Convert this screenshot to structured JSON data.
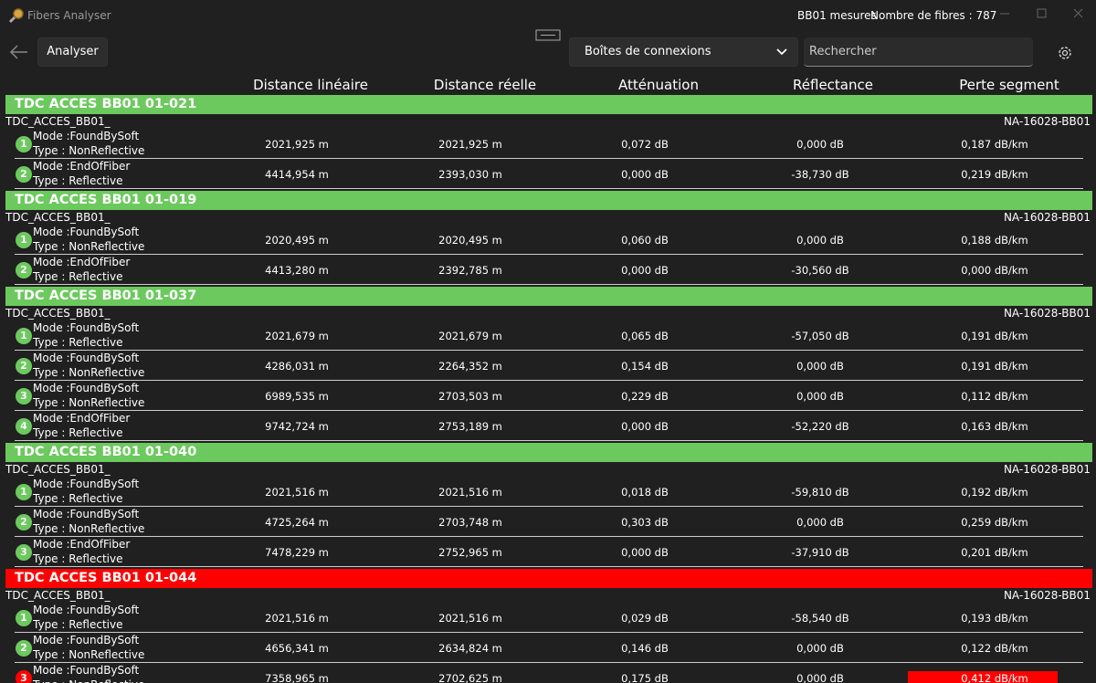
{
  "window": {
    "title": "Fibers Analyser",
    "measures": "BB01 mesures",
    "fiber_count": "Nombre de fibres : 787"
  },
  "toolbar": {
    "analyse_button": "Analyser",
    "dropdown": "Boîtes de connexions",
    "search_placeholder": "Rechercher"
  },
  "columns": [
    "Distance linéaire",
    "Distance réelle",
    "Atténuation",
    "Réflectance",
    "Perte segment"
  ],
  "groups": [
    {
      "title": "TDC ACCES BB01 01-021",
      "color": "#6cc95e",
      "left": "TDC_ACCES_BB01_",
      "right": "NA-16028-BB01",
      "events": [
        {
          "number": 1,
          "mode": "Mode :FoundBySoft",
          "type": "Type : NonReflective",
          "alert": false,
          "cells": [
            "2021,925 m",
            "2021,925 m",
            "0,072 dB",
            "0,000 dB",
            "0,187 dB/km"
          ]
        },
        {
          "number": 2,
          "mode": "Mode :EndOfFiber",
          "type": "Type : Reflective",
          "alert": false,
          "cells": [
            "4414,954 m",
            "2393,030 m",
            "0,000 dB",
            "-38,730 dB",
            "0,219 dB/km"
          ]
        }
      ]
    },
    {
      "title": "TDC ACCES BB01 01-019",
      "color": "#6cc95e",
      "left": "TDC_ACCES_BB01_",
      "right": "NA-16028-BB01",
      "events": [
        {
          "number": 1,
          "mode": "Mode :FoundBySoft",
          "type": "Type : NonReflective",
          "alert": false,
          "cells": [
            "2020,495 m",
            "2020,495 m",
            "0,060 dB",
            "0,000 dB",
            "0,188 dB/km"
          ]
        },
        {
          "number": 2,
          "mode": "Mode :EndOfFiber",
          "type": "Type : Reflective",
          "alert": false,
          "cells": [
            "4413,280 m",
            "2392,785 m",
            "0,000 dB",
            "-30,560 dB",
            "0,000 dB/km"
          ]
        }
      ]
    },
    {
      "title": "TDC ACCES BB01 01-037",
      "color": "#6cc95e",
      "left": "TDC_ACCES_BB01_",
      "right": "NA-16028-BB01",
      "events": [
        {
          "number": 1,
          "mode": "Mode :FoundBySoft",
          "type": "Type : Reflective",
          "alert": false,
          "cells": [
            "2021,679 m",
            "2021,679 m",
            "0,065 dB",
            "-57,050 dB",
            "0,191 dB/km"
          ]
        },
        {
          "number": 2,
          "mode": "Mode :FoundBySoft",
          "type": "Type : NonReflective",
          "alert": false,
          "cells": [
            "4286,031 m",
            "2264,352 m",
            "0,154 dB",
            "0,000 dB",
            "0,191 dB/km"
          ]
        },
        {
          "number": 3,
          "mode": "Mode :FoundBySoft",
          "type": "Type : NonReflective",
          "alert": false,
          "cells": [
            "6989,535 m",
            "2703,503 m",
            "0,229 dB",
            "0,000 dB",
            "0,112 dB/km"
          ]
        },
        {
          "number": 4,
          "mode": "Mode :EndOfFiber",
          "type": "Type : Reflective",
          "alert": false,
          "cells": [
            "9742,724 m",
            "2753,189 m",
            "0,000 dB",
            "-52,220 dB",
            "0,163 dB/km"
          ]
        }
      ]
    },
    {
      "title": "TDC ACCES BB01 01-040",
      "color": "#6cc95e",
      "left": "TDC_ACCES_BB01_",
      "right": "NA-16028-BB01",
      "events": [
        {
          "number": 1,
          "mode": "Mode :FoundBySoft",
          "type": "Type : Reflective",
          "alert": false,
          "cells": [
            "2021,516 m",
            "2021,516 m",
            "0,018 dB",
            "-59,810 dB",
            "0,192 dB/km"
          ]
        },
        {
          "number": 2,
          "mode": "Mode :FoundBySoft",
          "type": "Type : NonReflective",
          "alert": false,
          "cells": [
            "4725,264 m",
            "2703,748 m",
            "0,303 dB",
            "0,000 dB",
            "0,259 dB/km"
          ]
        },
        {
          "number": 3,
          "mode": "Mode :EndOfFiber",
          "type": "Type : Reflective",
          "alert": false,
          "cells": [
            "7478,229 m",
            "2752,965 m",
            "0,000 dB",
            "-37,910 dB",
            "0,201 dB/km"
          ]
        }
      ]
    },
    {
      "title": "TDC ACCES BB01 01-044",
      "color": "#ff0000",
      "left": "TDC_ACCES_BB01_",
      "right": "NA-16028-BB01",
      "events": [
        {
          "number": 1,
          "mode": "Mode :FoundBySoft",
          "type": "Type : Reflective",
          "alert": false,
          "cells": [
            "2021,516 m",
            "2021,516 m",
            "0,029 dB",
            "-58,540 dB",
            "0,193 dB/km"
          ]
        },
        {
          "number": 2,
          "mode": "Mode :FoundBySoft",
          "type": "Type : NonReflective",
          "alert": false,
          "cells": [
            "4656,341 m",
            "2634,824 m",
            "0,146 dB",
            "0,000 dB",
            "0,122 dB/km"
          ]
        },
        {
          "number": 3,
          "mode": "Mode :FoundBySoft",
          "type": "Type : NonReflective",
          "alert": true,
          "cells": [
            "7358,965 m",
            "2702,625 m",
            "0,175 dB",
            "0,000 dB",
            "0,412 dB/km"
          ]
        }
      ]
    }
  ]
}
